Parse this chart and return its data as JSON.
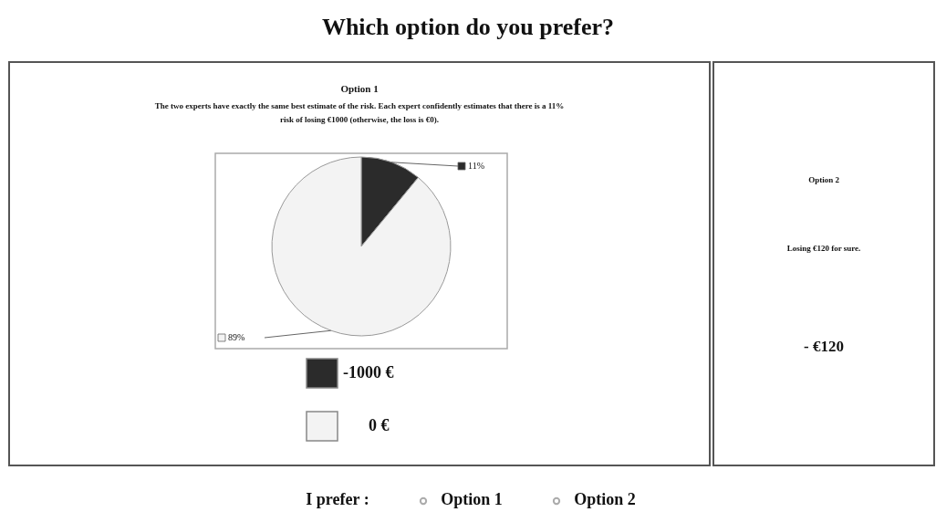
{
  "chart_data": {
    "type": "pie",
    "title": "Which option do you prefer?",
    "categories": [
      "-1000 €",
      "0 €"
    ],
    "values": [
      11,
      89
    ],
    "colors": [
      "#2b2b2b",
      "#f3f3f3"
    ],
    "value_labels": [
      "11%",
      "89%"
    ],
    "legend": "bottom",
    "annotations": [
      "Option 1",
      "The two experts have exactly the same best estimate of the risk. Each expert confidently estimates that there is a 11% risk of losing €1000 (otherwise, the loss is €0).",
      "Option 2",
      "Losing €120 for sure.",
      "- €120",
      "I prefer :",
      "Option 1",
      "Option 2"
    ]
  }
}
